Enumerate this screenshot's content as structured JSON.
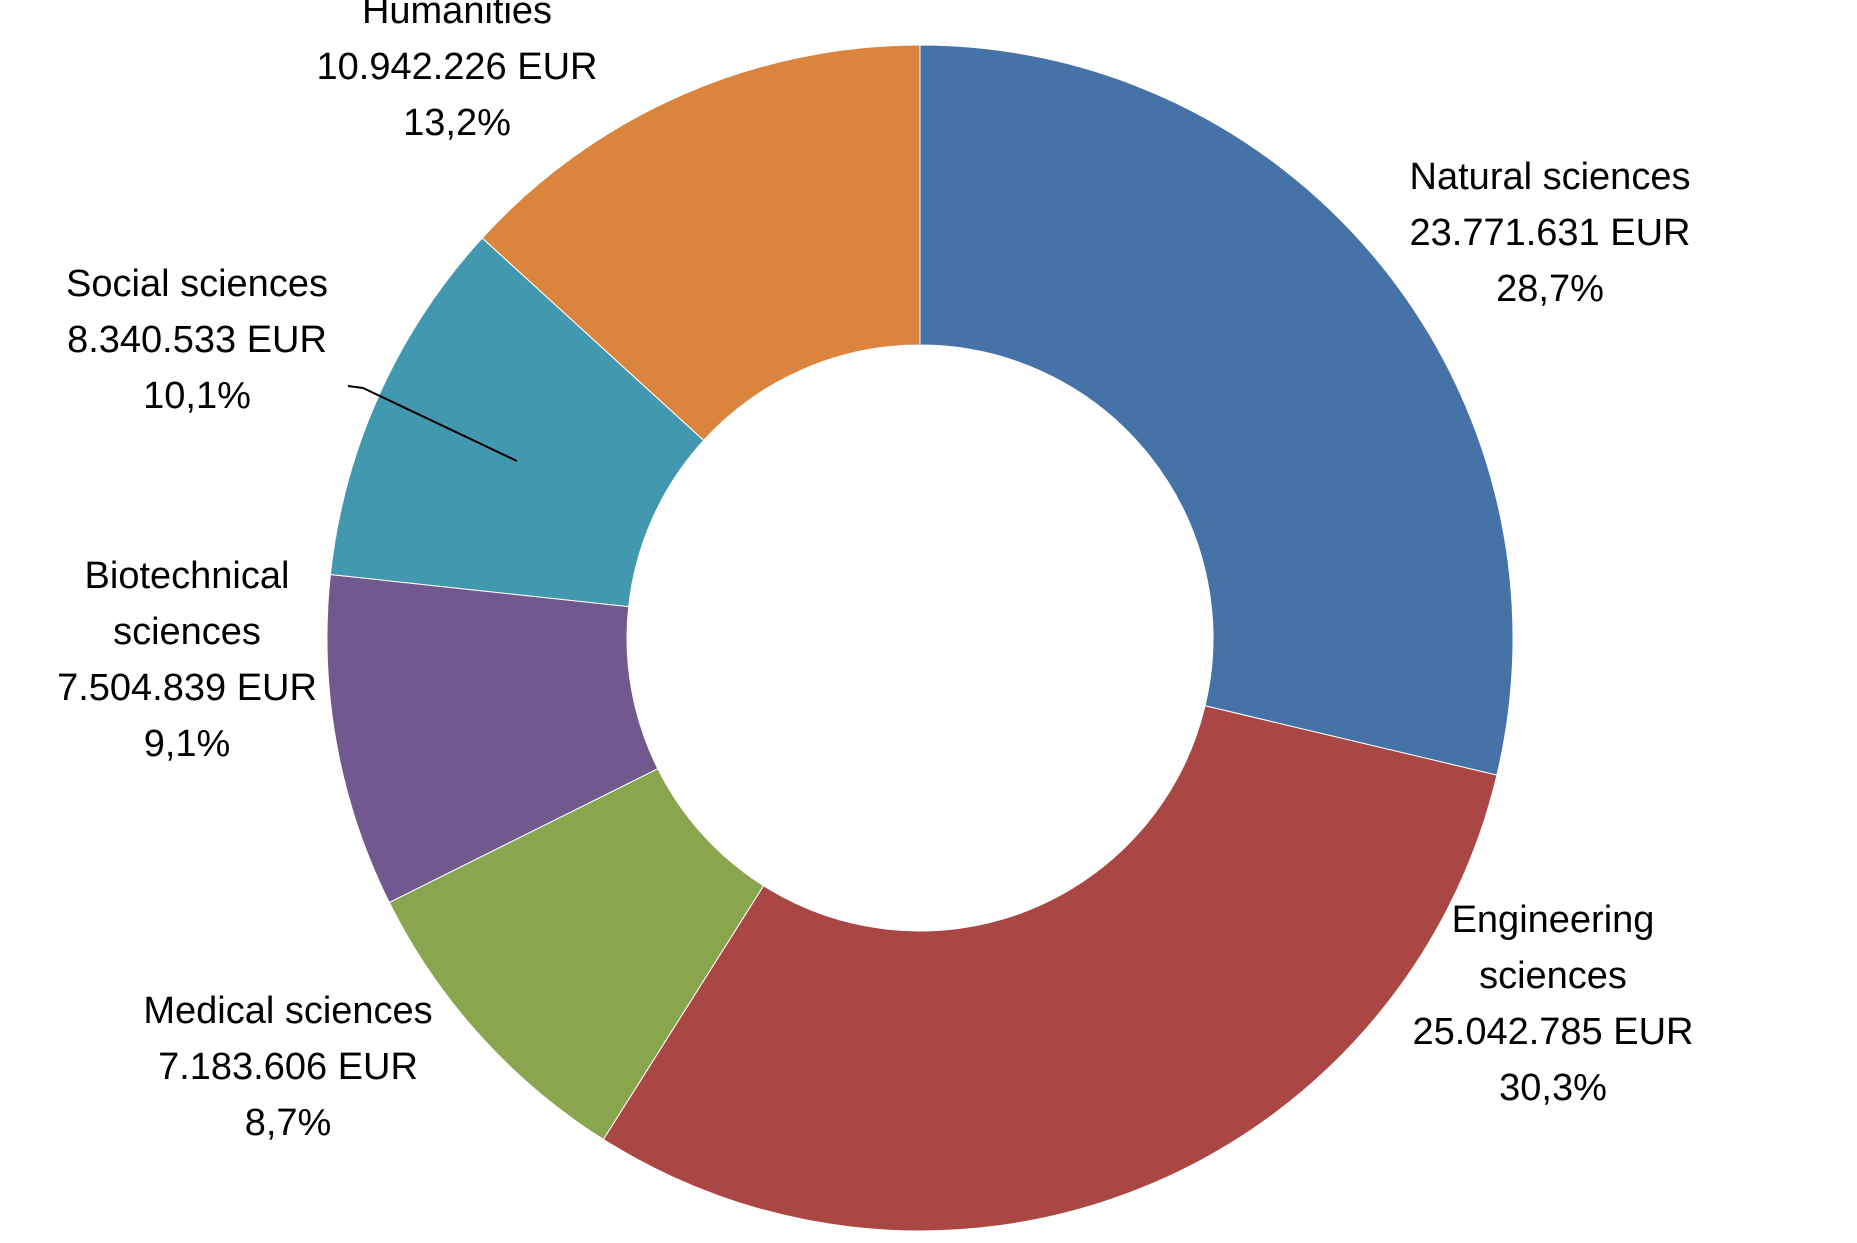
{
  "chart_data": {
    "type": "pie",
    "variant": "donut",
    "start_angle_deg": 0,
    "direction": "clockwise",
    "currency": "EUR",
    "slices": [
      {
        "name": "Natural sciences",
        "value": 23771631,
        "value_label": "23.771.631 EUR",
        "percent": 28.7,
        "percent_label": "28,7%",
        "color": "#4572A7"
      },
      {
        "name": "Engineering sciences",
        "label_lines": [
          "Engineering",
          "sciences"
        ],
        "value": 25042785,
        "value_label": "25.042.785 EUR",
        "percent": 30.3,
        "percent_label": "30,3%",
        "color": "#AA4643"
      },
      {
        "name": "Medical sciences",
        "value": 7183606,
        "value_label": "7.183.606 EUR",
        "percent": 8.7,
        "percent_label": "8,7%",
        "color": "#89A54E"
      },
      {
        "name": "Biotechnical sciences",
        "label_lines": [
          "Biotechnical",
          "sciences"
        ],
        "value": 7504839,
        "value_label": "7.504.839 EUR",
        "percent": 9.1,
        "percent_label": "9,1%",
        "color": "#71588F"
      },
      {
        "name": "Social sciences",
        "value": 8340533,
        "value_label": "8.340.533 EUR",
        "percent": 10.1,
        "percent_label": "10,1%",
        "color": "#4198AF"
      },
      {
        "name": "Humanities",
        "value": 10942226,
        "value_label": "10.942.226 EUR",
        "percent": 13.2,
        "percent_label": "13,2%",
        "color": "#DB843D"
      }
    ]
  }
}
